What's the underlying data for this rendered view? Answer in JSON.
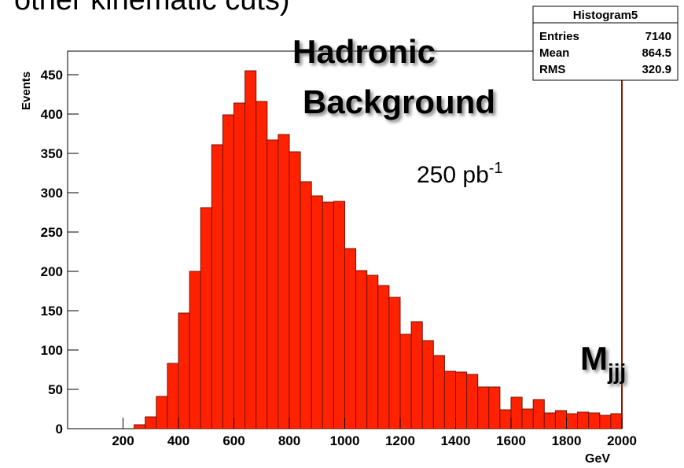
{
  "chart_data": {
    "type": "histogram",
    "header_text": "other kinematic cuts)",
    "ylabel": "Events",
    "xlabel": "GeV",
    "annotations": {
      "line1": "Hadronic",
      "line2": "Background",
      "lumi": "250 pb",
      "lumi_sup": "-1",
      "var": "M",
      "var_sub": "jjj"
    },
    "stats": {
      "title": "Histogram5",
      "rows": [
        {
          "label": "Entries",
          "value": 7140
        },
        {
          "label": "Mean",
          "value": 864.5
        },
        {
          "label": "RMS",
          "value": 320.9
        }
      ]
    },
    "bins": [
      0,
      40,
      80,
      120,
      160,
      200,
      240,
      280,
      320,
      360,
      400,
      440,
      480,
      520,
      560,
      600,
      640,
      680,
      720,
      760,
      800,
      840,
      880,
      920,
      960,
      1000,
      1040,
      1080,
      1120,
      1160,
      1200,
      1240,
      1280,
      1320,
      1360,
      1400,
      1440,
      1480,
      1520,
      1560,
      1600,
      1640,
      1680,
      1720,
      1760,
      1800,
      1840,
      1880,
      1920,
      1960,
      2000
    ],
    "values": [
      0,
      0,
      0,
      0,
      0,
      0,
      5,
      15,
      41,
      83,
      147,
      200,
      281,
      361,
      399,
      414,
      455,
      416,
      367,
      374,
      352,
      314,
      296,
      288,
      289,
      229,
      201,
      195,
      182,
      167,
      120,
      136,
      112,
      93,
      73,
      72,
      69,
      53,
      53,
      24,
      40,
      25,
      37,
      20,
      23,
      19,
      21,
      20,
      17,
      19
    ],
    "color": "#ff2200",
    "xlim": [
      0,
      2000
    ],
    "ylim": [
      0,
      480
    ],
    "xticks": [
      200,
      400,
      600,
      800,
      1000,
      1200,
      1400,
      1600,
      1800,
      2000
    ],
    "yticks": [
      0,
      50,
      100,
      150,
      200,
      250,
      300,
      350,
      400,
      450
    ]
  }
}
